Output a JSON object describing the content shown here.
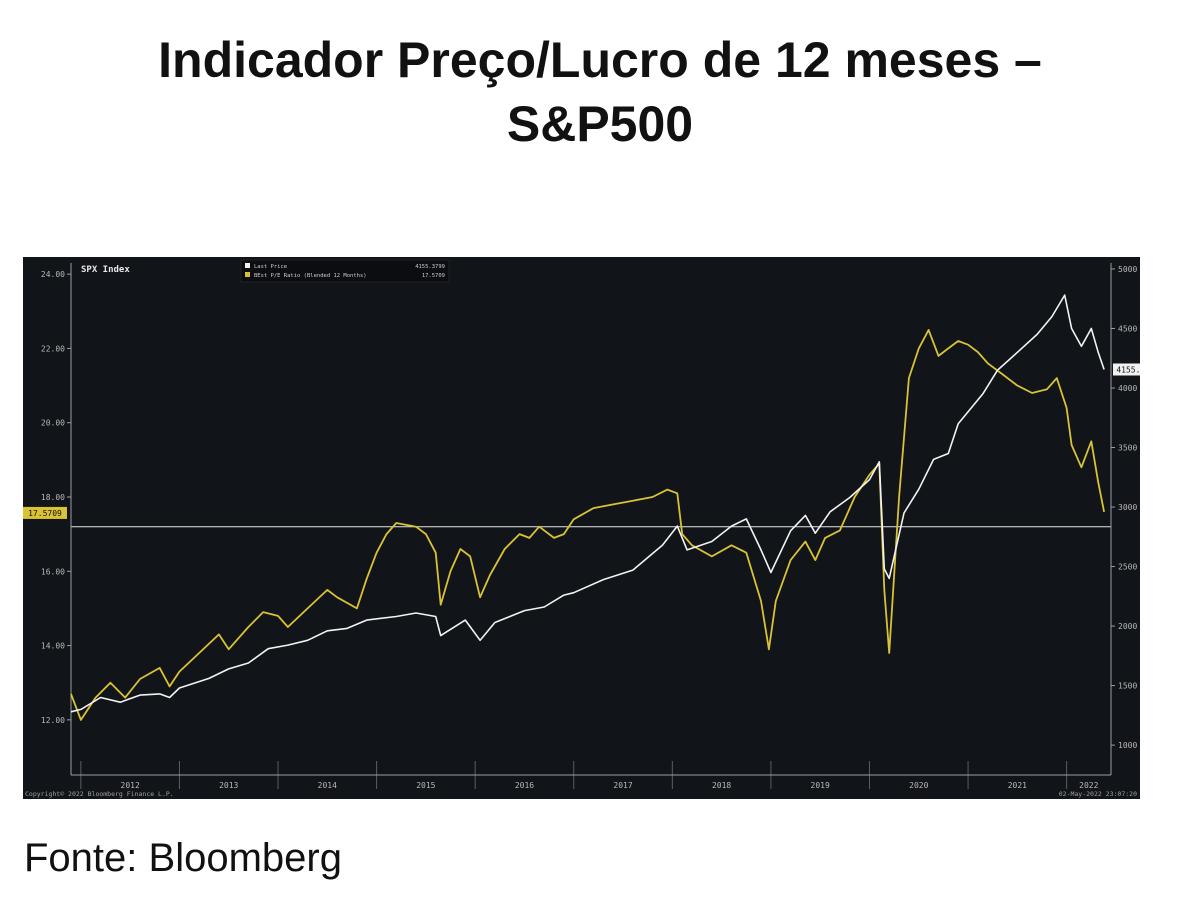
{
  "title": "Indicador Preço/Lucro de 12 meses – S&P500",
  "source": "Fonte: Bloomberg",
  "colors": {
    "background": "#111418",
    "pe_series": "#d9c233",
    "price_series": "#f2f2f2",
    "reference_line": "#e6e6e6",
    "axis": "#9aa0a6"
  },
  "chart_data": {
    "type": "line",
    "ticker_label": "SPX Index",
    "copyright": "Copyright© 2022 Bloomberg Finance L.P.",
    "timestamp": "02-May-2022 23:07:20",
    "xlim": [
      2011.9,
      2022.45
    ],
    "x_ticks": [
      2012,
      2013,
      2014,
      2015,
      2016,
      2017,
      2018,
      2019,
      2020,
      2021,
      2022
    ],
    "x_tick_labels": [
      "2012",
      "2013",
      "2014",
      "2015",
      "2016",
      "2017",
      "2018",
      "2019",
      "2020",
      "2021",
      "2022"
    ],
    "y_left": {
      "lim": [
        11,
        24.3
      ],
      "ticks": [
        12,
        14,
        16,
        18,
        20,
        22,
        24
      ],
      "tick_labels": [
        "12.00",
        "14.00",
        "16.00",
        "18.00",
        "20.00",
        "22.00",
        "24.00"
      ]
    },
    "y_right": {
      "lim": [
        900,
        5050
      ],
      "ticks": [
        1000,
        1500,
        2000,
        2500,
        3000,
        3500,
        4000,
        4500,
        5000
      ],
      "tick_labels": [
        "1000",
        "1500",
        "2000",
        "2500",
        "3000",
        "3500",
        "4000",
        "4500",
        "5000"
      ]
    },
    "reference_line": {
      "axis": "left",
      "value": 17.2
    },
    "series": [
      {
        "name": "BEst P/E Ratio (Blended 12 Months)",
        "axis": "left",
        "last_value": 17.5709,
        "last_label": "17.5709",
        "points": [
          [
            2011.9,
            12.7
          ],
          [
            2012.0,
            12.0
          ],
          [
            2012.15,
            12.6
          ],
          [
            2012.3,
            13.0
          ],
          [
            2012.45,
            12.6
          ],
          [
            2012.6,
            13.1
          ],
          [
            2012.8,
            13.4
          ],
          [
            2012.9,
            12.9
          ],
          [
            2013.0,
            13.3
          ],
          [
            2013.2,
            13.8
          ],
          [
            2013.4,
            14.3
          ],
          [
            2013.5,
            13.9
          ],
          [
            2013.7,
            14.5
          ],
          [
            2013.85,
            14.9
          ],
          [
            2014.0,
            14.8
          ],
          [
            2014.1,
            14.5
          ],
          [
            2014.3,
            15.0
          ],
          [
            2014.5,
            15.5
          ],
          [
            2014.6,
            15.3
          ],
          [
            2014.8,
            15.0
          ],
          [
            2014.9,
            15.8
          ],
          [
            2015.0,
            16.5
          ],
          [
            2015.1,
            17.0
          ],
          [
            2015.2,
            17.3
          ],
          [
            2015.4,
            17.2
          ],
          [
            2015.5,
            17.0
          ],
          [
            2015.6,
            16.5
          ],
          [
            2015.65,
            15.1
          ],
          [
            2015.75,
            16.0
          ],
          [
            2015.85,
            16.6
          ],
          [
            2015.95,
            16.4
          ],
          [
            2016.05,
            15.3
          ],
          [
            2016.15,
            15.9
          ],
          [
            2016.3,
            16.6
          ],
          [
            2016.45,
            17.0
          ],
          [
            2016.55,
            16.9
          ],
          [
            2016.65,
            17.2
          ],
          [
            2016.8,
            16.9
          ],
          [
            2016.9,
            17.0
          ],
          [
            2017.0,
            17.4
          ],
          [
            2017.2,
            17.7
          ],
          [
            2017.4,
            17.8
          ],
          [
            2017.6,
            17.9
          ],
          [
            2017.8,
            18.0
          ],
          [
            2017.95,
            18.2
          ],
          [
            2018.05,
            18.1
          ],
          [
            2018.1,
            17.0
          ],
          [
            2018.2,
            16.7
          ],
          [
            2018.4,
            16.4
          ],
          [
            2018.6,
            16.7
          ],
          [
            2018.75,
            16.5
          ],
          [
            2018.9,
            15.2
          ],
          [
            2018.98,
            13.9
          ],
          [
            2019.05,
            15.2
          ],
          [
            2019.2,
            16.3
          ],
          [
            2019.35,
            16.8
          ],
          [
            2019.45,
            16.3
          ],
          [
            2019.55,
            16.9
          ],
          [
            2019.7,
            17.1
          ],
          [
            2019.85,
            18.0
          ],
          [
            2020.0,
            18.6
          ],
          [
            2020.1,
            18.9
          ],
          [
            2020.15,
            15.5
          ],
          [
            2020.2,
            13.8
          ],
          [
            2020.3,
            18.0
          ],
          [
            2020.4,
            21.2
          ],
          [
            2020.5,
            22.0
          ],
          [
            2020.6,
            22.5
          ],
          [
            2020.7,
            21.8
          ],
          [
            2020.8,
            22.0
          ],
          [
            2020.9,
            22.2
          ],
          [
            2021.0,
            22.1
          ],
          [
            2021.1,
            21.9
          ],
          [
            2021.2,
            21.6
          ],
          [
            2021.35,
            21.3
          ],
          [
            2021.5,
            21.0
          ],
          [
            2021.65,
            20.8
          ],
          [
            2021.8,
            20.9
          ],
          [
            2021.9,
            21.2
          ],
          [
            2022.0,
            20.4
          ],
          [
            2022.05,
            19.4
          ],
          [
            2022.15,
            18.8
          ],
          [
            2022.25,
            19.5
          ],
          [
            2022.32,
            18.4
          ],
          [
            2022.38,
            17.6
          ]
        ]
      },
      {
        "name": "Last Price",
        "axis": "right",
        "last_value": 4155.3799,
        "last_label": "4155.3799",
        "points": [
          [
            2011.9,
            1280
          ],
          [
            2012.0,
            1300
          ],
          [
            2012.2,
            1400
          ],
          [
            2012.4,
            1360
          ],
          [
            2012.6,
            1420
          ],
          [
            2012.8,
            1430
          ],
          [
            2012.9,
            1400
          ],
          [
            2013.0,
            1480
          ],
          [
            2013.3,
            1560
          ],
          [
            2013.5,
            1640
          ],
          [
            2013.7,
            1690
          ],
          [
            2013.9,
            1810
          ],
          [
            2014.1,
            1840
          ],
          [
            2014.3,
            1880
          ],
          [
            2014.5,
            1960
          ],
          [
            2014.7,
            1980
          ],
          [
            2014.9,
            2050
          ],
          [
            2015.2,
            2080
          ],
          [
            2015.4,
            2110
          ],
          [
            2015.6,
            2080
          ],
          [
            2015.65,
            1920
          ],
          [
            2015.9,
            2050
          ],
          [
            2016.05,
            1880
          ],
          [
            2016.2,
            2030
          ],
          [
            2016.5,
            2130
          ],
          [
            2016.7,
            2160
          ],
          [
            2016.9,
            2260
          ],
          [
            2017.0,
            2280
          ],
          [
            2017.3,
            2390
          ],
          [
            2017.6,
            2470
          ],
          [
            2017.9,
            2680
          ],
          [
            2018.05,
            2840
          ],
          [
            2018.15,
            2640
          ],
          [
            2018.4,
            2710
          ],
          [
            2018.6,
            2840
          ],
          [
            2018.75,
            2900
          ],
          [
            2018.9,
            2640
          ],
          [
            2019.0,
            2450
          ],
          [
            2019.2,
            2800
          ],
          [
            2019.35,
            2930
          ],
          [
            2019.45,
            2780
          ],
          [
            2019.6,
            2960
          ],
          [
            2019.8,
            3080
          ],
          [
            2020.0,
            3230
          ],
          [
            2020.1,
            3380
          ],
          [
            2020.15,
            2480
          ],
          [
            2020.2,
            2400
          ],
          [
            2020.35,
            2950
          ],
          [
            2020.5,
            3150
          ],
          [
            2020.65,
            3400
          ],
          [
            2020.8,
            3450
          ],
          [
            2020.9,
            3700
          ],
          [
            2021.0,
            3800
          ],
          [
            2021.15,
            3950
          ],
          [
            2021.3,
            4150
          ],
          [
            2021.5,
            4300
          ],
          [
            2021.7,
            4450
          ],
          [
            2021.85,
            4600
          ],
          [
            2021.98,
            4780
          ],
          [
            2022.05,
            4500
          ],
          [
            2022.15,
            4350
          ],
          [
            2022.25,
            4500
          ],
          [
            2022.32,
            4300
          ],
          [
            2022.38,
            4155
          ]
        ]
      }
    ]
  }
}
